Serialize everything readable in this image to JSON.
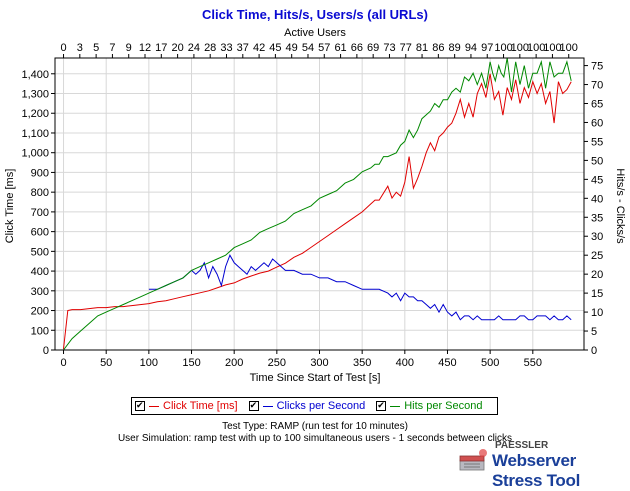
{
  "chart_data": {
    "type": "line",
    "title": "Click Time, Hits/s, Users/s (all URLs)",
    "xlabel": "Time Since Start of Test [s]",
    "ylabel_left": "Click Time [ms]",
    "ylabel_right": "Hits/s - Clicks/s",
    "top_axis_label": "Active Users",
    "xlim": [
      -10,
      610
    ],
    "ylim_left": [
      0,
      1480
    ],
    "ylim_right": [
      0,
      77
    ],
    "x_ticks": [
      0,
      50,
      100,
      150,
      200,
      250,
      300,
      350,
      400,
      450,
      500,
      550
    ],
    "y_ticks_left": [
      "0",
      "100",
      "200",
      "300",
      "400",
      "500",
      "600",
      "700",
      "800",
      "900",
      "1,000",
      "1,100",
      "1,200",
      "1,300",
      "1,400"
    ],
    "y_ticks_right": [
      0,
      5,
      10,
      15,
      20,
      25,
      30,
      35,
      40,
      45,
      50,
      55,
      60,
      65,
      70,
      75
    ],
    "top_ticks": [
      "0",
      "3",
      "5",
      "7",
      "9",
      "12",
      "17",
      "20",
      "24",
      "28",
      "33",
      "37",
      "42",
      "45",
      "49",
      "54",
      "57",
      "61",
      "66",
      "69",
      "73",
      "77",
      "81",
      "86",
      "89",
      "94",
      "97",
      "100",
      "100",
      "100",
      "100",
      "100"
    ],
    "grid": true,
    "series": [
      {
        "name": "Click Time [ms]",
        "axis": "left",
        "color": "#e00000",
        "x": [
          0,
          5,
          10,
          20,
          30,
          40,
          50,
          60,
          70,
          80,
          90,
          100,
          110,
          120,
          130,
          140,
          150,
          160,
          170,
          180,
          190,
          200,
          210,
          220,
          230,
          240,
          250,
          260,
          270,
          280,
          290,
          300,
          310,
          320,
          330,
          340,
          350,
          360,
          365,
          370,
          380,
          385,
          390,
          395,
          400,
          405,
          410,
          415,
          420,
          425,
          430,
          435,
          440,
          445,
          450,
          455,
          460,
          465,
          470,
          475,
          480,
          485,
          490,
          495,
          500,
          505,
          510,
          515,
          520,
          525,
          530,
          535,
          540,
          545,
          550,
          555,
          560,
          565,
          570,
          575,
          580,
          585,
          590,
          595
        ],
        "y": [
          5,
          200,
          205,
          205,
          210,
          215,
          215,
          220,
          220,
          225,
          230,
          235,
          245,
          250,
          260,
          270,
          280,
          290,
          300,
          315,
          330,
          340,
          360,
          375,
          390,
          400,
          420,
          440,
          470,
          490,
          520,
          550,
          580,
          610,
          640,
          670,
          700,
          740,
          760,
          760,
          830,
          770,
          800,
          780,
          850,
          980,
          820,
          870,
          930,
          1000,
          1050,
          1010,
          1080,
          1100,
          1130,
          1150,
          1200,
          1270,
          1180,
          1250,
          1180,
          1300,
          1350,
          1280,
          1400,
          1270,
          1310,
          1190,
          1330,
          1270,
          1370,
          1250,
          1330,
          1280,
          1360,
          1300,
          1350,
          1250,
          1310,
          1150,
          1360,
          1300,
          1320,
          1360
        ]
      },
      {
        "name": "Clicks per Second",
        "axis": "right",
        "color": "#0000d0",
        "x": [
          100,
          110,
          120,
          130,
          140,
          150,
          155,
          160,
          165,
          170,
          175,
          180,
          185,
          190,
          195,
          200,
          205,
          210,
          215,
          220,
          225,
          230,
          235,
          240,
          245,
          250,
          260,
          270,
          280,
          290,
          300,
          310,
          320,
          330,
          340,
          350,
          360,
          370,
          380,
          385,
          390,
          395,
          400,
          405,
          410,
          415,
          420,
          425,
          430,
          435,
          440,
          445,
          450,
          455,
          460,
          465,
          470,
          475,
          480,
          485,
          490,
          495,
          500,
          505,
          510,
          515,
          520,
          525,
          530,
          535,
          540,
          545,
          550,
          555,
          560,
          565,
          570,
          575,
          580,
          585,
          590,
          595
        ],
        "y": [
          16,
          16,
          17,
          18,
          19,
          21,
          20,
          21,
          23,
          19,
          22,
          20,
          17,
          22,
          25,
          23,
          22,
          21,
          20,
          22,
          21,
          22,
          23,
          22,
          24,
          23,
          21,
          21,
          20,
          20,
          19,
          19,
          18,
          18,
          17,
          16,
          16,
          16,
          15,
          14,
          15,
          13,
          15,
          14,
          14,
          13,
          13,
          12,
          11,
          12,
          10,
          12,
          10,
          9,
          10,
          8,
          9,
          9,
          8,
          9,
          8,
          8,
          8,
          8,
          9,
          8,
          8,
          8,
          8,
          9,
          9,
          8,
          8,
          9,
          9,
          9,
          8,
          9,
          8,
          8,
          9,
          8
        ]
      },
      {
        "name": "Hits per Second",
        "axis": "right",
        "color": "#008800",
        "x": [
          0,
          10,
          20,
          30,
          40,
          50,
          60,
          70,
          80,
          90,
          100,
          110,
          120,
          130,
          140,
          150,
          160,
          170,
          180,
          190,
          200,
          210,
          220,
          230,
          240,
          250,
          260,
          270,
          280,
          290,
          300,
          310,
          320,
          330,
          340,
          350,
          360,
          365,
          370,
          375,
          380,
          390,
          395,
          400,
          405,
          410,
          415,
          420,
          425,
          430,
          435,
          440,
          445,
          450,
          455,
          460,
          465,
          470,
          475,
          480,
          485,
          490,
          495,
          500,
          503,
          506,
          510,
          513,
          516,
          520,
          525,
          530,
          535,
          540,
          545,
          550,
          555,
          560,
          565,
          570,
          575,
          580,
          585,
          590,
          595
        ],
        "y": [
          0,
          3,
          5,
          7,
          9,
          10,
          11,
          12,
          13,
          14,
          15,
          16,
          17,
          18,
          19,
          21,
          22,
          23,
          24,
          25,
          27,
          28,
          29,
          31,
          32,
          33,
          34,
          36,
          37,
          38,
          40,
          41,
          42,
          44,
          45,
          47,
          48,
          49,
          49,
          51,
          51,
          52,
          54,
          55,
          58,
          56,
          58,
          61,
          62,
          63,
          65,
          64,
          66,
          66,
          68,
          69,
          68,
          72,
          71,
          73,
          70,
          73,
          69,
          76,
          73,
          71,
          75,
          73,
          72,
          77,
          68,
          76,
          70,
          75,
          69,
          73,
          73,
          76,
          69,
          76,
          72,
          73,
          73,
          76,
          71
        ]
      }
    ]
  },
  "legend": {
    "items": [
      {
        "label": "Click Time [ms]",
        "color": "#e00000"
      },
      {
        "label": "Clicks per Second",
        "color": "#0000d0"
      },
      {
        "label": "Hits per Second",
        "color": "#008800"
      }
    ]
  },
  "footer": {
    "test_type": "Test Type: RAMP (run test for 10 minutes)",
    "simulation": "User Simulation: ramp test with up to 100 simultaneous users - 1 seconds between clicks"
  },
  "brand": {
    "company": "PAESSLER",
    "product": "Webserver Stress Tool"
  }
}
